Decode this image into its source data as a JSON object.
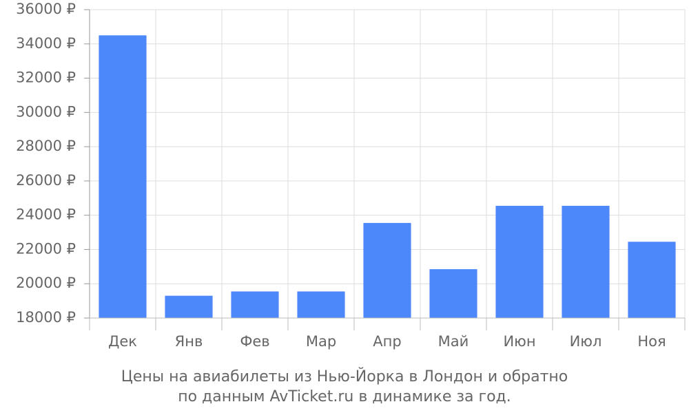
{
  "chart_data": {
    "type": "bar",
    "title": "Цены на авиабилеты из Нью-Йорка в Лондон и обратно",
    "subtitle": "по данным AvTicket.ru в динамике за год.",
    "categories": [
      "Дек",
      "Янв",
      "Фев",
      "Мар",
      "Апр",
      "Май",
      "Июн",
      "Июл",
      "Ноя"
    ],
    "values": [
      34500,
      19300,
      19550,
      19550,
      23550,
      20850,
      24550,
      24550,
      22450
    ],
    "color": "#4d88fa",
    "ylim": [
      18000,
      36000
    ],
    "yticks": [
      {
        "value": 18000,
        "label": "18000 ₽"
      },
      {
        "value": 20000,
        "label": "20000 ₽"
      },
      {
        "value": 22000,
        "label": "22000 ₽"
      },
      {
        "value": 24000,
        "label": "24000 ₽"
      },
      {
        "value": 26000,
        "label": "26000 ₽"
      },
      {
        "value": 28000,
        "label": "28000 ₽"
      },
      {
        "value": 30000,
        "label": "30000 ₽"
      },
      {
        "value": 32000,
        "label": "32000 ₽"
      },
      {
        "value": 34000,
        "label": "34000 ₽"
      },
      {
        "value": 36000,
        "label": "36000 ₽"
      }
    ],
    "grid": true
  }
}
